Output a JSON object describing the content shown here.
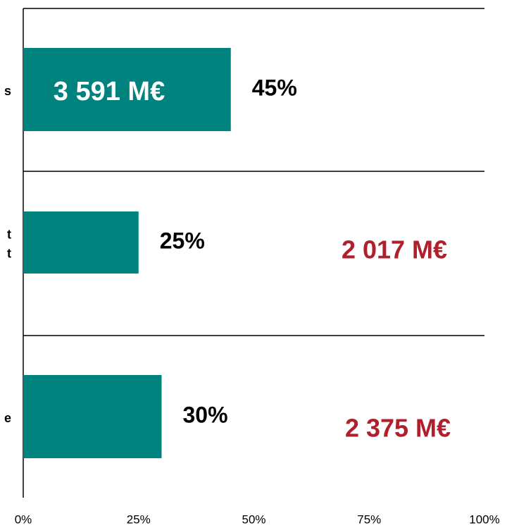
{
  "chart_data": {
    "type": "bar",
    "orientation": "horizontal",
    "categories": [
      [
        "s"
      ],
      [
        "t",
        "t"
      ],
      [
        "e"
      ]
    ],
    "values": [
      45,
      25,
      30
    ],
    "value_labels": [
      "45%",
      "25%",
      "30%"
    ],
    "color": "#00827f",
    "annotations": [
      {
        "text": "3 591 M€",
        "color": "#ffffff"
      },
      {
        "text": "2 017 M€",
        "color": "#b0202c"
      },
      {
        "text": "2 375 M€",
        "color": "#b0202c"
      }
    ],
    "xlim": [
      0,
      100
    ],
    "xticks": [
      {
        "value": 0,
        "label": "0%"
      },
      {
        "value": 25,
        "label": "25%"
      },
      {
        "value": 50,
        "label": "50%"
      },
      {
        "value": 75,
        "label": "75%"
      },
      {
        "value": 100,
        "label": "100%"
      }
    ]
  }
}
